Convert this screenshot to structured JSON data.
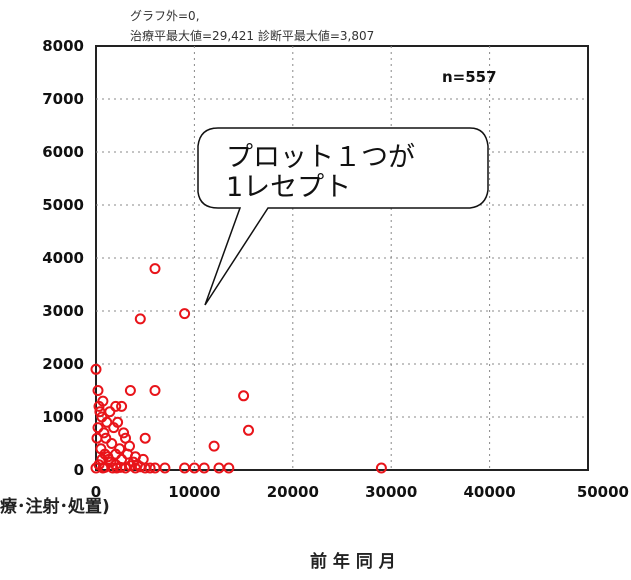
{
  "chart_data": {
    "type": "scatter",
    "header_line1": "グラフ外=0,",
    "header_line2": "治療平最大値=29,421 診断平最大値=3,807",
    "n_label": "n=557",
    "xlabel": "療･注射･処置)",
    "sublabel": "前 年 同 月",
    "callout_line1": "プロット１つが",
    "callout_line2": "1レセプト",
    "xlim": [
      0,
      50000
    ],
    "ylim": [
      0,
      8000
    ],
    "xticks": [
      "0",
      "10000",
      "20000",
      "30000",
      "40000",
      "50000"
    ],
    "yticks": [
      "0",
      "1000",
      "2000",
      "3000",
      "4000",
      "5000",
      "6000",
      "7000",
      "8000"
    ],
    "grid": true,
    "marker_color": "#e8141a",
    "points": [
      [
        6000,
        3800
      ],
      [
        4500,
        2850
      ],
      [
        9000,
        2950
      ],
      [
        0,
        1900
      ],
      [
        200,
        1500
      ],
      [
        3500,
        1500
      ],
      [
        6000,
        1500
      ],
      [
        15000,
        1400
      ],
      [
        2000,
        1200
      ],
      [
        2600,
        1200
      ],
      [
        5000,
        600
      ],
      [
        12000,
        450
      ],
      [
        15500,
        750
      ],
      [
        0,
        0
      ],
      [
        300,
        100
      ],
      [
        600,
        200
      ],
      [
        900,
        300
      ],
      [
        1200,
        250
      ],
      [
        1500,
        150
      ],
      [
        2000,
        100
      ],
      [
        2500,
        50
      ],
      [
        3000,
        0
      ],
      [
        3500,
        80
      ],
      [
        4000,
        20
      ],
      [
        4500,
        60
      ],
      [
        5000,
        0
      ],
      [
        5500,
        30
      ],
      [
        6000,
        0
      ],
      [
        7000,
        0
      ],
      [
        9000,
        0
      ],
      [
        10000,
        0
      ],
      [
        11000,
        0
      ],
      [
        12500,
        0
      ],
      [
        13500,
        0
      ],
      [
        29000,
        0
      ],
      [
        1000,
        600
      ],
      [
        1800,
        800
      ],
      [
        2400,
        400
      ],
      [
        3200,
        300
      ],
      [
        4000,
        250
      ],
      [
        600,
        1000
      ],
      [
        1100,
        900
      ],
      [
        300,
        1200
      ],
      [
        2800,
        700
      ],
      [
        1600,
        500
      ],
      [
        800,
        700
      ],
      [
        2000,
        300
      ],
      [
        3800,
        150
      ],
      [
        4800,
        200
      ],
      [
        2200,
        900
      ],
      [
        500,
        400
      ],
      [
        1400,
        1100
      ],
      [
        700,
        1300
      ],
      [
        3000,
        600
      ],
      [
        1300,
        200
      ],
      [
        200,
        800
      ],
      [
        400,
        1100
      ],
      [
        100,
        600
      ],
      [
        900,
        50
      ],
      [
        2600,
        200
      ],
      [
        3400,
        450
      ],
      [
        4200,
        100
      ],
      [
        1700,
        0
      ],
      [
        2100,
        0
      ],
      [
        700,
        0
      ]
    ]
  }
}
